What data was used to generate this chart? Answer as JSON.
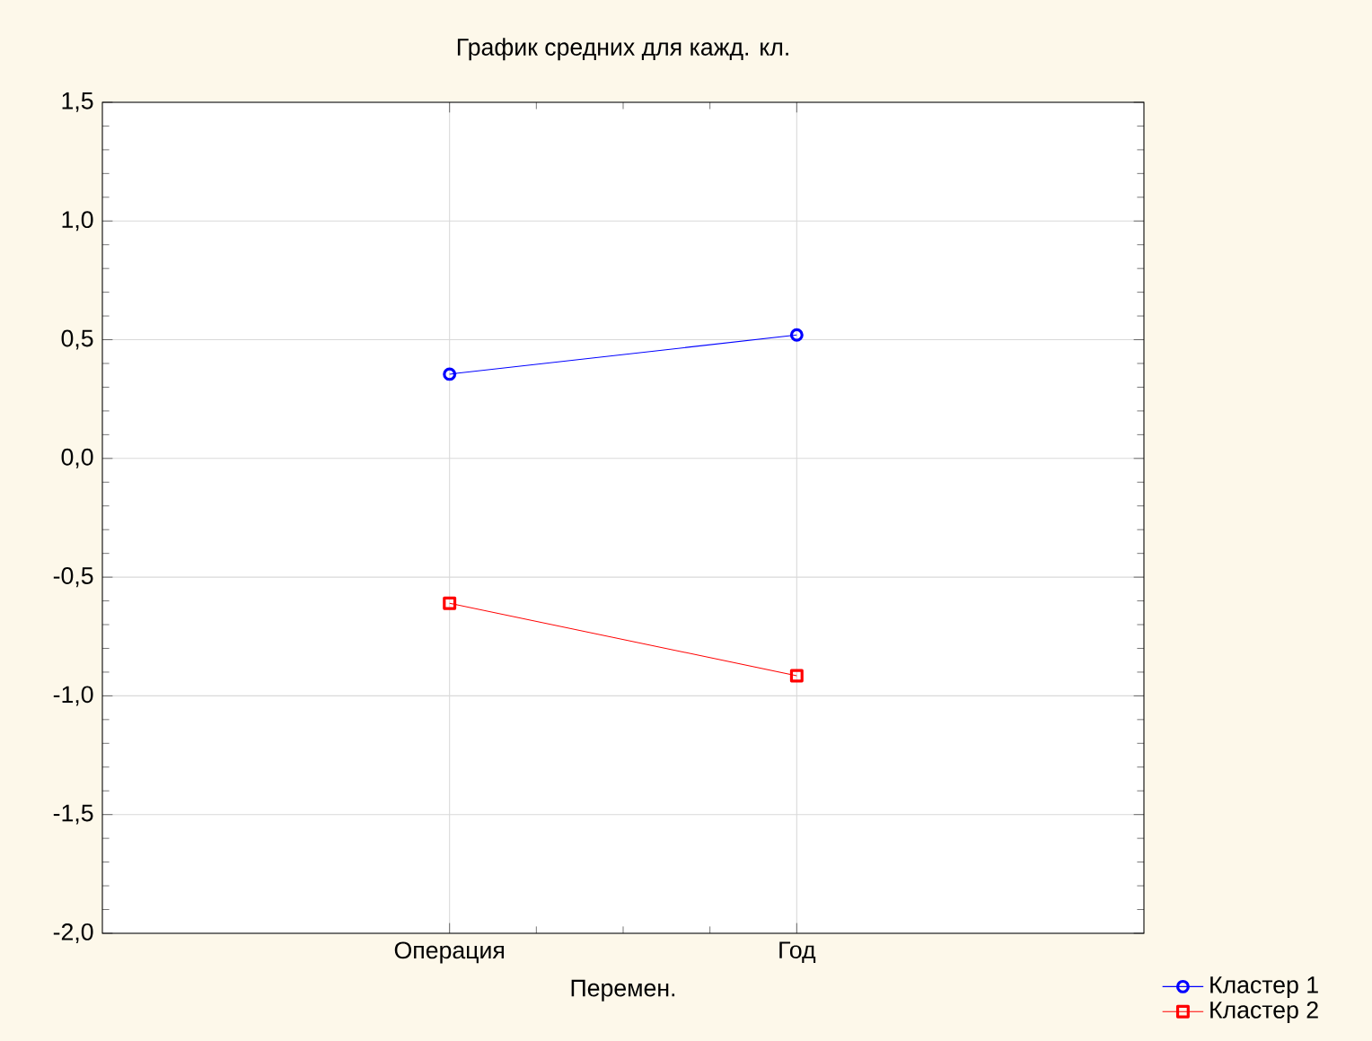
{
  "chart_data": {
    "type": "line",
    "title": "График средних для кажд. кл.",
    "xlabel": "Перемен.",
    "categories": [
      "Операция",
      "Год"
    ],
    "series": [
      {
        "name": "Кластер  1",
        "color": "#0000ff",
        "marker": "circle",
        "values": [
          0.355,
          0.52
        ]
      },
      {
        "name": "Кластер  2",
        "color": "#ff0000",
        "marker": "square",
        "values": [
          -0.61,
          -0.915
        ]
      }
    ],
    "ylim": [
      -2.0,
      1.5
    ],
    "yticks": [
      {
        "value": -2.0,
        "label": "-2,0"
      },
      {
        "value": -1.5,
        "label": "-1,5"
      },
      {
        "value": -1.0,
        "label": "-1,0"
      },
      {
        "value": -0.5,
        "label": "-0,5"
      },
      {
        "value": 0.0,
        "label": "0,0"
      },
      {
        "value": 0.5,
        "label": "0,5"
      },
      {
        "value": 1.0,
        "label": "1,0"
      },
      {
        "value": 1.5,
        "label": "1,5"
      }
    ],
    "grid": true,
    "legend": "bottom right",
    "line_style": "solid"
  }
}
